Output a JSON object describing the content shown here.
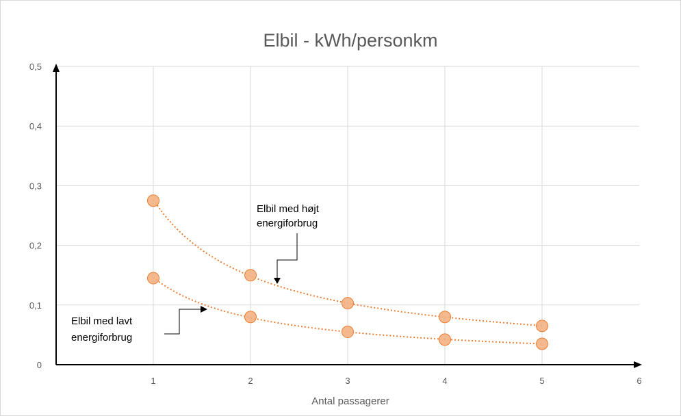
{
  "chart_data": {
    "type": "scatter",
    "title": "Elbil - kWh/personkm",
    "xlabel": "Antal passagerer",
    "ylabel": "",
    "xlim": [
      0,
      6
    ],
    "ylim": [
      0,
      0.5
    ],
    "x_ticks": [
      "1",
      "2",
      "3",
      "4",
      "5",
      "6"
    ],
    "y_ticks": [
      "0",
      "0,1",
      "0,2",
      "0,3",
      "0,4",
      "0,5"
    ],
    "grid": "vertical and horizontal",
    "trendline": "dotted power trendline per series",
    "series": [
      {
        "x": [
          1,
          2,
          3,
          4,
          5
        ],
        "values": [
          0.275,
          0.15,
          0.103,
          0.08,
          0.065
        ]
      },
      {
        "x": [
          1,
          2,
          3,
          4,
          5
        ],
        "values": [
          0.145,
          0.08,
          0.055,
          0.042,
          0.035
        ]
      }
    ],
    "annotations": [
      {
        "lines": [
          "Elbil med højt",
          "energiforbrug"
        ]
      },
      {
        "lines": [
          "Elbil med lavt",
          "energiforbrug"
        ]
      }
    ],
    "colors": {
      "marker_fill": "#f4b183",
      "marker_stroke": "#ed7d31",
      "trend": "#ed7d31",
      "grid": "#d9d9d9",
      "axis": "#000000"
    }
  }
}
